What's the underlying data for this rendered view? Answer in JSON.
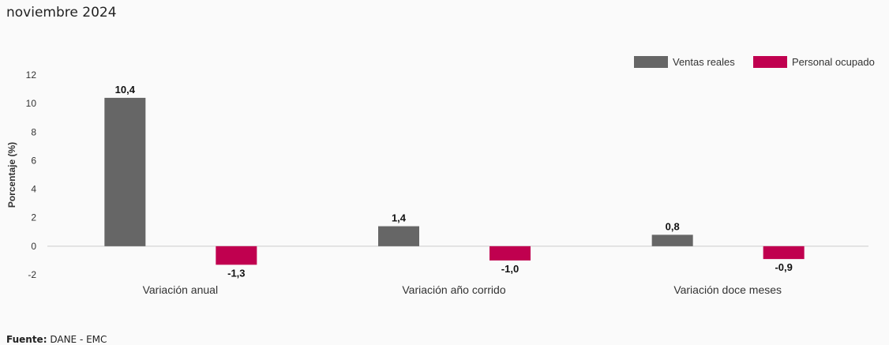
{
  "title": "noviembre 2024",
  "source": {
    "label": "Fuente:",
    "text": "DANE - EMC"
  },
  "chart_data": {
    "type": "bar",
    "title": "noviembre 2024",
    "ylabel": "Porcentaje (%)",
    "xlabel": "",
    "ylim": [
      -2,
      12
    ],
    "yticks": [
      -2,
      0,
      2,
      4,
      6,
      8,
      10,
      12
    ],
    "grid": false,
    "legend_position": "top-right",
    "categories": [
      "Variación anual",
      "Variación año corrido",
      "Variación doce meses"
    ],
    "series": [
      {
        "name": "Ventas reales",
        "color": "#666666",
        "values": [
          10.4,
          1.4,
          0.8
        ],
        "labels": [
          "10,4",
          "1,4",
          "0,8"
        ]
      },
      {
        "name": "Personal ocupado",
        "color": "#c0004f",
        "values": [
          -1.3,
          -1.0,
          -0.9
        ],
        "labels": [
          "-1,3",
          "-1,0",
          "-0,9"
        ]
      }
    ]
  }
}
